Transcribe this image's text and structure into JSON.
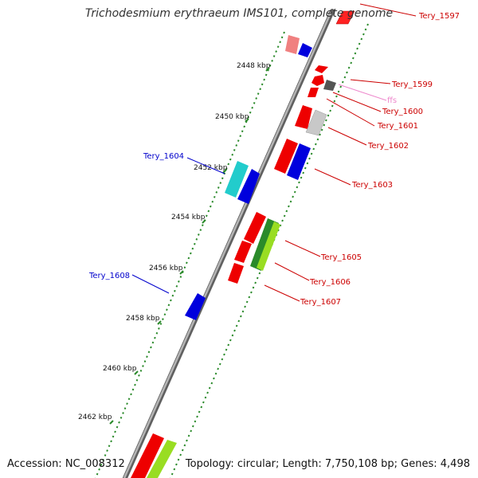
{
  "title": "Trichodesmium erythraeum IMS101, complete genome",
  "footer": {
    "accession": "Accession: NC_008312",
    "summary": "Topology: circular; Length: 7,750,108 bp; Genes: 4,498"
  },
  "colors": {
    "backbone": "#8a8a8a",
    "dots": "#2a8a2a",
    "label_red": "#cc0000",
    "label_blue": "#0000cc",
    "label_pink": "#ee88cc"
  },
  "ticks": [
    "2448 kbp",
    "2450 kbp",
    "2452 kbp",
    "2454 kbp",
    "2456 kbp",
    "2458 kbp",
    "2460 kbp",
    "2462 kbp"
  ],
  "labels": [
    {
      "id": "Tery_1597",
      "color": "red"
    },
    {
      "id": "Tery_1599",
      "color": "red"
    },
    {
      "id": "ffs",
      "color": "pink"
    },
    {
      "id": "Tery_1600",
      "color": "red"
    },
    {
      "id": "Tery_1601",
      "color": "red"
    },
    {
      "id": "Tery_1602",
      "color": "red"
    },
    {
      "id": "Tery_1603",
      "color": "red"
    },
    {
      "id": "Tery_1604",
      "color": "blue"
    },
    {
      "id": "Tery_1605",
      "color": "red"
    },
    {
      "id": "Tery_1606",
      "color": "red"
    },
    {
      "id": "Tery_1607",
      "color": "red"
    },
    {
      "id": "Tery_1608",
      "color": "blue"
    }
  ]
}
